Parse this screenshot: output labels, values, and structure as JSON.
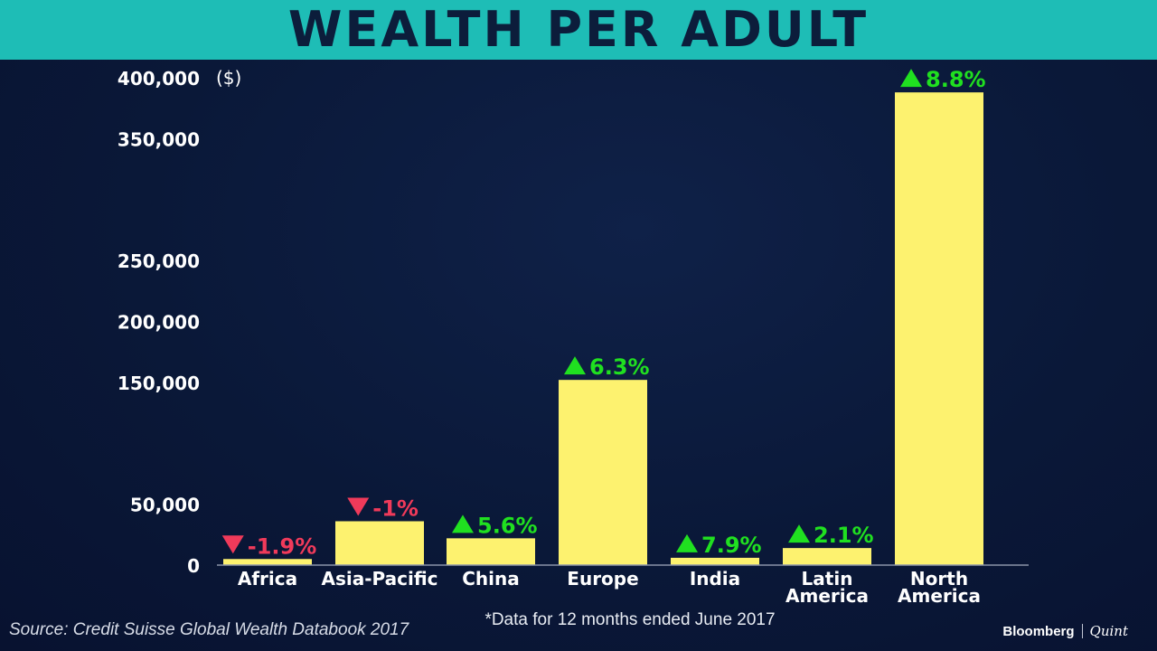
{
  "title": "WEALTH PER ADULT",
  "source": "Source: Credit Suisse Global Wealth Databook 2017",
  "footnote": "*Data for 12 months ended June 2017",
  "brand": {
    "name": "Bloomberg",
    "partner": "Quint"
  },
  "colors": {
    "bar": "#fdf26f",
    "up": "#20e020",
    "down": "#f03a5a",
    "title_bg": "#1ebdb6",
    "title_text": "#0c1d3b"
  },
  "chart_data": {
    "type": "bar",
    "title": "WEALTH PER ADULT",
    "unit_label": "($)",
    "categories": [
      "Africa",
      "Asia-Pacific",
      "China",
      "Europe",
      "India",
      "Latin America",
      "North America"
    ],
    "category_lines": [
      [
        "Africa"
      ],
      [
        "Asia-Pacific"
      ],
      [
        "China"
      ],
      [
        "Europe"
      ],
      [
        "India"
      ],
      [
        "Latin",
        "America"
      ],
      [
        "North",
        "America"
      ]
    ],
    "values": [
      5000,
      36000,
      22000,
      152000,
      6000,
      14000,
      388000
    ],
    "changes": [
      "-1.9%",
      "-1%",
      "5.6%",
      "6.3%",
      "7.9%",
      "2.1%",
      "8.8%"
    ],
    "change_direction": [
      "down",
      "down",
      "up",
      "up",
      "up",
      "up",
      "up"
    ],
    "y_ticks": [
      0,
      50000,
      150000,
      200000,
      250000,
      350000,
      400000
    ],
    "y_tick_labels": [
      "0",
      "50,000",
      "150,000",
      "200,000",
      "250,000",
      "350,000",
      "400,000"
    ],
    "ylim": [
      0,
      400000
    ],
    "grid": false
  }
}
